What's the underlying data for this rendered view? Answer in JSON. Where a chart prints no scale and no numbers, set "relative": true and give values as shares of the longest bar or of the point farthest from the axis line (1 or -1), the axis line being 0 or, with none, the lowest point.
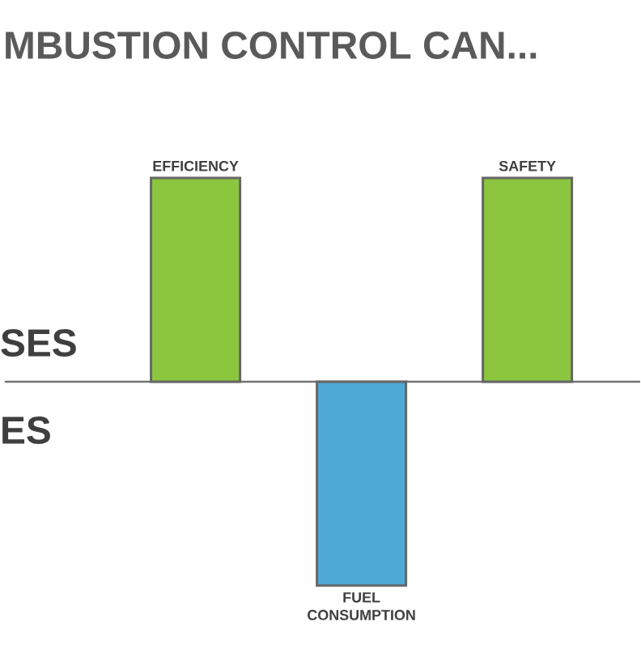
{
  "chart_data": {
    "type": "bar",
    "title": "MBUSTION CONTROL CAN...",
    "relative": true,
    "categories": [
      "EFFICIENCY",
      "FUEL CONSUMPTION",
      "SAFETY"
    ],
    "values": [
      1,
      -1,
      1
    ],
    "colors": [
      "#8cc63f",
      "#4fa9d6",
      "#8cc63f"
    ],
    "annotations": [
      "SES",
      "ES"
    ]
  }
}
